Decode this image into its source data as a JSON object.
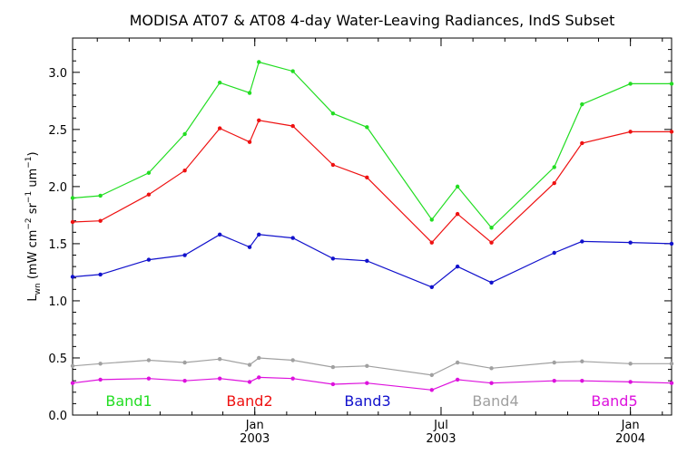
{
  "chart_data": {
    "type": "line",
    "title": "MODISA AT07 & AT08 4-day Water-Leaving Radiances, IndS Subset",
    "ylabel": "L_wn (mW cm^-2 sr^-1 um^-1)",
    "ylabel_main": "L",
    "ylabel_sub": "wn",
    "ylabel_rest1": " (mW cm",
    "ylabel_sup1": "−2",
    "ylabel_rest2": " sr",
    "ylabel_sup2": "−1",
    "ylabel_rest3": " um",
    "ylabel_sup3": "−1",
    "ylabel_rest4": ")",
    "ylim": [
      0,
      3.3
    ],
    "xlim": [
      "2002-07-08",
      "2004-02-10"
    ],
    "yticks": [
      0.0,
      0.5,
      1.0,
      1.5,
      2.0,
      2.5,
      3.0
    ],
    "ytick_labels": [
      "0.0",
      "0.5",
      "1.0",
      "1.5",
      "2.0",
      "2.5",
      "3.0"
    ],
    "xticks": [
      {
        "date": "2003-01-01",
        "label1": "Jan",
        "label2": "2003"
      },
      {
        "date": "2003-07-01",
        "label1": "Jul",
        "label2": "2003"
      },
      {
        "date": "2004-01-01",
        "label1": "Jan",
        "label2": "2004"
      }
    ],
    "x": [
      "2002-07-08",
      "2002-08-04",
      "2002-09-20",
      "2002-10-25",
      "2002-11-28",
      "2002-12-27",
      "2003-01-05",
      "2003-02-07",
      "2003-03-18",
      "2003-04-20",
      "2003-06-22",
      "2003-07-17",
      "2003-08-19",
      "2003-10-19",
      "2003-11-15",
      "2004-01-01",
      "2004-02-10"
    ],
    "series": [
      {
        "name": "Band1",
        "color": "#22dd22",
        "values": [
          1.9,
          1.92,
          2.12,
          2.46,
          2.91,
          2.82,
          3.09,
          3.01,
          2.64,
          2.52,
          1.71,
          2.0,
          1.64,
          2.17,
          2.72,
          2.9,
          2.9
        ]
      },
      {
        "name": "Band2",
        "color": "#ee1111",
        "values": [
          1.69,
          1.7,
          1.93,
          2.14,
          2.51,
          2.39,
          2.58,
          2.53,
          2.19,
          2.08,
          1.51,
          1.76,
          1.51,
          2.03,
          2.38,
          2.48,
          2.48
        ]
      },
      {
        "name": "Band3",
        "color": "#1111cc",
        "values": [
          1.21,
          1.23,
          1.36,
          1.4,
          1.58,
          1.47,
          1.58,
          1.55,
          1.37,
          1.35,
          1.12,
          1.3,
          1.16,
          1.42,
          1.52,
          1.51,
          1.5
        ]
      },
      {
        "name": "Band4",
        "color": "#a0a0a0",
        "values": [
          0.43,
          0.45,
          0.48,
          0.46,
          0.49,
          0.44,
          0.5,
          0.48,
          0.42,
          0.43,
          0.35,
          0.46,
          0.41,
          0.46,
          0.47,
          0.45,
          0.45
        ]
      },
      {
        "name": "Band5",
        "color": "#dd11dd",
        "values": [
          0.28,
          0.31,
          0.32,
          0.3,
          0.32,
          0.29,
          0.33,
          0.32,
          0.27,
          0.28,
          0.22,
          0.31,
          0.28,
          0.3,
          0.3,
          0.29,
          0.28
        ]
      }
    ],
    "legend": [
      {
        "label": "Band1",
        "color": "#22dd22"
      },
      {
        "label": "Band2",
        "color": "#ee1111"
      },
      {
        "label": "Band3",
        "color": "#1111cc"
      },
      {
        "label": "Band4",
        "color": "#a0a0a0"
      },
      {
        "label": "Band5",
        "color": "#dd11dd"
      }
    ],
    "legend_placement": "bottom inside plot",
    "grid": false
  }
}
